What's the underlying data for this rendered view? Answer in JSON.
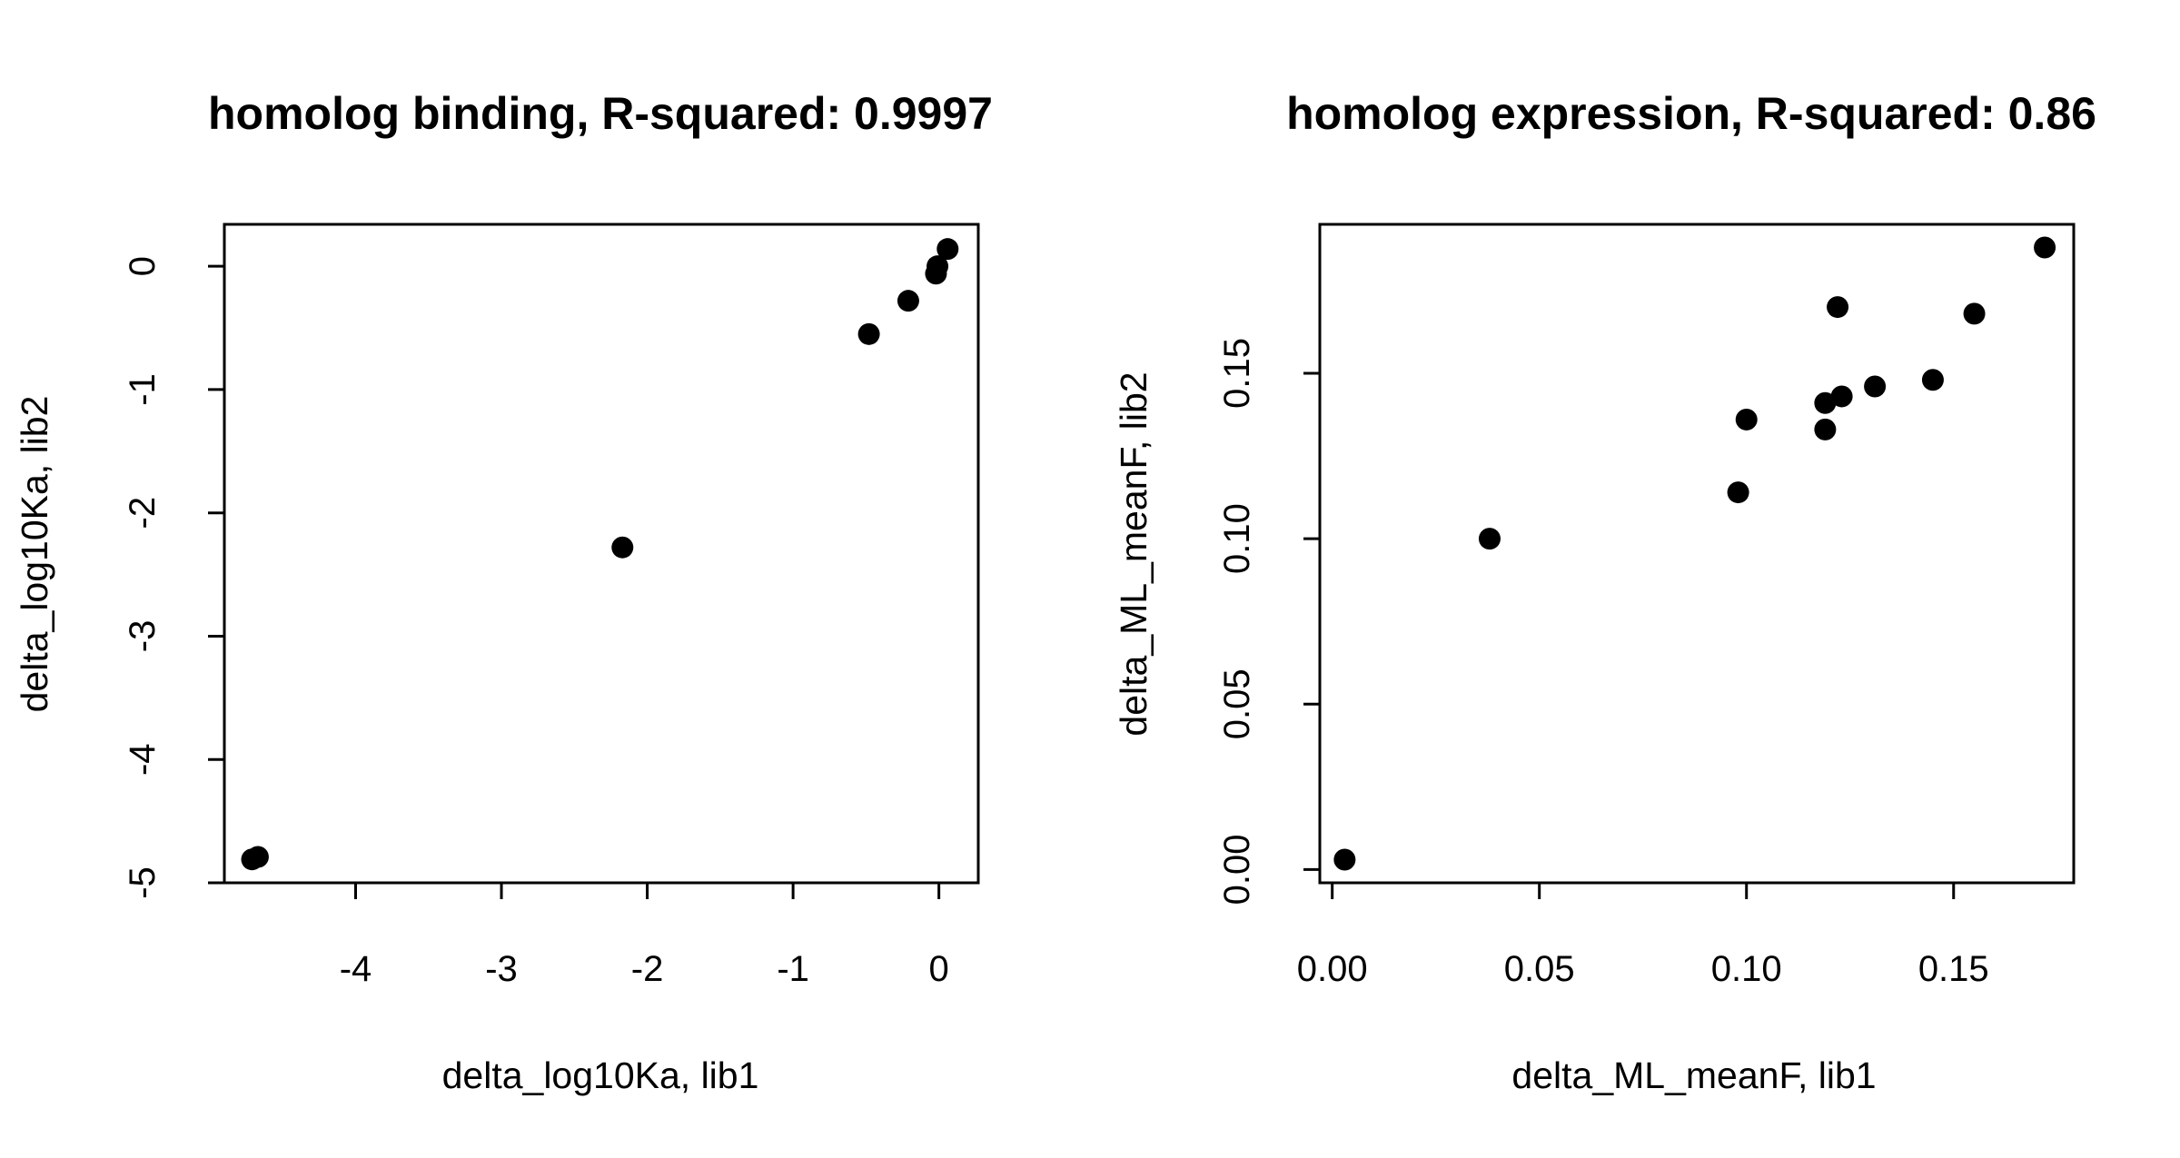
{
  "chart_data": [
    {
      "type": "scatter",
      "title": "homolog binding, R-squared: 0.9997",
      "xlabel": "delta_log10Ka, lib1",
      "ylabel": "delta_log10Ka, lib2",
      "xlim": [
        -4.9,
        0.27
      ],
      "ylim": [
        -5.0,
        0.34
      ],
      "xticks": [
        -4,
        -3,
        -2,
        -1,
        0
      ],
      "xtick_labels": [
        "-4",
        "-3",
        "-2",
        "-1",
        "0"
      ],
      "yticks": [
        -5,
        -4,
        -3,
        -2,
        -1,
        0
      ],
      "ytick_labels": [
        "-5",
        "-4",
        "-3",
        "-2",
        "-1",
        "0"
      ],
      "grid": false,
      "points": [
        {
          "x": 0.06,
          "y": 0.14
        },
        {
          "x": -0.01,
          "y": 0.0
        },
        {
          "x": -0.02,
          "y": -0.06
        },
        {
          "x": -0.21,
          "y": -0.28
        },
        {
          "x": -0.48,
          "y": -0.55
        },
        {
          "x": -2.17,
          "y": -2.28
        },
        {
          "x": -4.67,
          "y": -4.79
        },
        {
          "x": -4.71,
          "y": -4.81
        }
      ]
    },
    {
      "type": "scatter",
      "title": "homolog expression, R-squared: 0.86",
      "xlabel": "delta_ML_meanF, lib1",
      "ylabel": "delta_ML_meanF, lib2",
      "xlim": [
        -0.003,
        0.179
      ],
      "ylim": [
        -0.004,
        0.195
      ],
      "xticks": [
        0.0,
        0.05,
        0.1,
        0.15
      ],
      "xtick_labels": [
        "0.00",
        "0.05",
        "0.10",
        "0.15"
      ],
      "yticks": [
        0.0,
        0.05,
        0.1,
        0.15
      ],
      "ytick_labels": [
        "0.00",
        "0.05",
        "0.10",
        "0.15"
      ],
      "grid": false,
      "points": [
        {
          "x": 0.003,
          "y": 0.003
        },
        {
          "x": 0.038,
          "y": 0.1
        },
        {
          "x": 0.098,
          "y": 0.114
        },
        {
          "x": 0.1,
          "y": 0.136
        },
        {
          "x": 0.119,
          "y": 0.133
        },
        {
          "x": 0.119,
          "y": 0.141
        },
        {
          "x": 0.122,
          "y": 0.17
        },
        {
          "x": 0.123,
          "y": 0.143
        },
        {
          "x": 0.131,
          "y": 0.146
        },
        {
          "x": 0.145,
          "y": 0.148
        },
        {
          "x": 0.155,
          "y": 0.168
        },
        {
          "x": 0.172,
          "y": 0.188
        }
      ]
    }
  ]
}
